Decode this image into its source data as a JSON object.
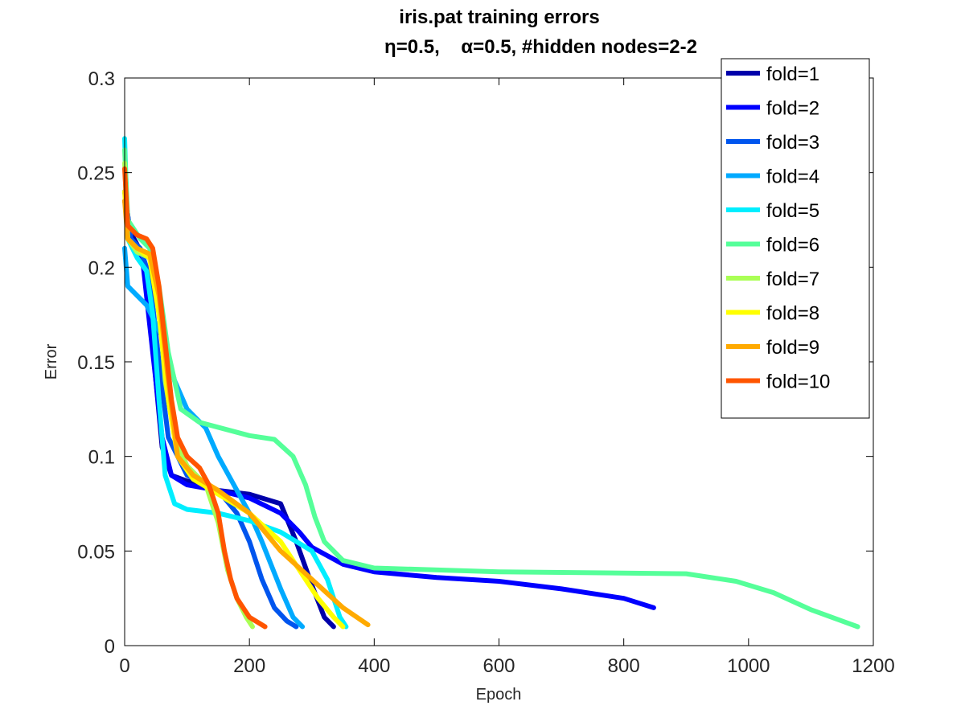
{
  "chart_data": {
    "type": "line",
    "title": "iris.pat training errors",
    "subtitle": "η=0.5,    α=0.5, #hidden nodes=2-2",
    "xlabel": "Epoch",
    "ylabel": "Error",
    "xlim": [
      0,
      1200
    ],
    "ylim": [
      0,
      0.3
    ],
    "xticks": [
      0,
      200,
      400,
      600,
      800,
      1000,
      1200
    ],
    "xtick_labels": [
      "0",
      "200",
      "400",
      "600",
      "800",
      "1000",
      "1200"
    ],
    "yticks": [
      0,
      0.05,
      0.1,
      0.15,
      0.2,
      0.25,
      0.3
    ],
    "ytick_labels": [
      "0",
      "0.05",
      "0.1",
      "0.15",
      "0.2",
      "0.25",
      "0.3"
    ],
    "grid": false,
    "legend_position": "top-right",
    "series": [
      {
        "name": "fold=1",
        "color": "#0000aa",
        "points": [
          [
            0,
            0.235
          ],
          [
            10,
            0.218
          ],
          [
            20,
            0.212
          ],
          [
            30,
            0.205
          ],
          [
            40,
            0.18
          ],
          [
            50,
            0.14
          ],
          [
            60,
            0.105
          ],
          [
            75,
            0.09
          ],
          [
            100,
            0.087
          ],
          [
            150,
            0.082
          ],
          [
            200,
            0.08
          ],
          [
            250,
            0.075
          ],
          [
            275,
            0.055
          ],
          [
            300,
            0.032
          ],
          [
            320,
            0.015
          ],
          [
            335,
            0.01
          ]
        ]
      },
      {
        "name": "fold=2",
        "color": "#0000ff",
        "points": [
          [
            0,
            0.24
          ],
          [
            10,
            0.215
          ],
          [
            20,
            0.208
          ],
          [
            30,
            0.2
          ],
          [
            40,
            0.17
          ],
          [
            50,
            0.14
          ],
          [
            60,
            0.11
          ],
          [
            75,
            0.09
          ],
          [
            100,
            0.085
          ],
          [
            150,
            0.082
          ],
          [
            200,
            0.078
          ],
          [
            250,
            0.07
          ],
          [
            280,
            0.06
          ],
          [
            300,
            0.052
          ],
          [
            350,
            0.043
          ],
          [
            400,
            0.039
          ],
          [
            500,
            0.036
          ],
          [
            600,
            0.034
          ],
          [
            700,
            0.03
          ],
          [
            800,
            0.025
          ],
          [
            848,
            0.02
          ]
        ]
      },
      {
        "name": "fold=3",
        "color": "#0055ee",
        "points": [
          [
            0,
            0.24
          ],
          [
            10,
            0.215
          ],
          [
            25,
            0.21
          ],
          [
            40,
            0.195
          ],
          [
            55,
            0.15
          ],
          [
            70,
            0.11
          ],
          [
            100,
            0.09
          ],
          [
            150,
            0.082
          ],
          [
            180,
            0.07
          ],
          [
            200,
            0.055
          ],
          [
            220,
            0.035
          ],
          [
            240,
            0.02
          ],
          [
            260,
            0.013
          ],
          [
            275,
            0.01
          ]
        ]
      },
      {
        "name": "fold=4",
        "color": "#00aaff",
        "points": [
          [
            0,
            0.21
          ],
          [
            5,
            0.19
          ],
          [
            20,
            0.185
          ],
          [
            35,
            0.18
          ],
          [
            50,
            0.17
          ],
          [
            65,
            0.16
          ],
          [
            80,
            0.14
          ],
          [
            100,
            0.125
          ],
          [
            130,
            0.115
          ],
          [
            150,
            0.1
          ],
          [
            200,
            0.07
          ],
          [
            220,
            0.055
          ],
          [
            250,
            0.03
          ],
          [
            270,
            0.015
          ],
          [
            285,
            0.01
          ]
        ]
      },
      {
        "name": "fold=5",
        "color": "#00eeff",
        "points": [
          [
            0,
            0.268
          ],
          [
            5,
            0.215
          ],
          [
            20,
            0.205
          ],
          [
            35,
            0.198
          ],
          [
            45,
            0.175
          ],
          [
            55,
            0.13
          ],
          [
            65,
            0.09
          ],
          [
            80,
            0.075
          ],
          [
            100,
            0.072
          ],
          [
            150,
            0.07
          ],
          [
            200,
            0.066
          ],
          [
            250,
            0.06
          ],
          [
            300,
            0.05
          ],
          [
            325,
            0.035
          ],
          [
            345,
            0.015
          ],
          [
            355,
            0.01
          ]
        ]
      },
      {
        "name": "fold=6",
        "color": "#55ff99",
        "points": [
          [
            0,
            0.262
          ],
          [
            5,
            0.225
          ],
          [
            25,
            0.215
          ],
          [
            40,
            0.21
          ],
          [
            55,
            0.19
          ],
          [
            70,
            0.155
          ],
          [
            90,
            0.125
          ],
          [
            120,
            0.118
          ],
          [
            200,
            0.111
          ],
          [
            240,
            0.109
          ],
          [
            270,
            0.1
          ],
          [
            290,
            0.085
          ],
          [
            305,
            0.068
          ],
          [
            320,
            0.055
          ],
          [
            350,
            0.045
          ],
          [
            400,
            0.041
          ],
          [
            600,
            0.039
          ],
          [
            900,
            0.038
          ],
          [
            980,
            0.034
          ],
          [
            1040,
            0.028
          ],
          [
            1100,
            0.019
          ],
          [
            1150,
            0.013
          ],
          [
            1175,
            0.01
          ]
        ]
      },
      {
        "name": "fold=7",
        "color": "#aaff55",
        "points": [
          [
            0,
            0.255
          ],
          [
            5,
            0.215
          ],
          [
            20,
            0.208
          ],
          [
            40,
            0.205
          ],
          [
            55,
            0.18
          ],
          [
            65,
            0.14
          ],
          [
            80,
            0.11
          ],
          [
            100,
            0.095
          ],
          [
            130,
            0.085
          ],
          [
            150,
            0.065
          ],
          [
            165,
            0.04
          ],
          [
            180,
            0.025
          ],
          [
            195,
            0.015
          ],
          [
            205,
            0.01
          ]
        ]
      },
      {
        "name": "fold=8",
        "color": "#ffff00",
        "points": [
          [
            0,
            0.24
          ],
          [
            5,
            0.215
          ],
          [
            20,
            0.21
          ],
          [
            40,
            0.205
          ],
          [
            55,
            0.175
          ],
          [
            70,
            0.13
          ],
          [
            85,
            0.1
          ],
          [
            110,
            0.088
          ],
          [
            150,
            0.08
          ],
          [
            200,
            0.07
          ],
          [
            250,
            0.055
          ],
          [
            280,
            0.04
          ],
          [
            310,
            0.025
          ],
          [
            335,
            0.015
          ],
          [
            350,
            0.01
          ]
        ]
      },
      {
        "name": "fold=9",
        "color": "#ffaa00",
        "points": [
          [
            0,
            0.235
          ],
          [
            5,
            0.215
          ],
          [
            20,
            0.21
          ],
          [
            40,
            0.207
          ],
          [
            55,
            0.185
          ],
          [
            70,
            0.14
          ],
          [
            85,
            0.1
          ],
          [
            110,
            0.09
          ],
          [
            150,
            0.082
          ],
          [
            200,
            0.07
          ],
          [
            250,
            0.05
          ],
          [
            300,
            0.035
          ],
          [
            350,
            0.02
          ],
          [
            390,
            0.011
          ]
        ]
      },
      {
        "name": "fold=10",
        "color": "#ff5500",
        "points": [
          [
            0,
            0.252
          ],
          [
            5,
            0.222
          ],
          [
            20,
            0.217
          ],
          [
            35,
            0.215
          ],
          [
            45,
            0.21
          ],
          [
            55,
            0.19
          ],
          [
            65,
            0.16
          ],
          [
            75,
            0.13
          ],
          [
            85,
            0.11
          ],
          [
            100,
            0.1
          ],
          [
            120,
            0.094
          ],
          [
            135,
            0.085
          ],
          [
            150,
            0.07
          ],
          [
            160,
            0.05
          ],
          [
            170,
            0.035
          ],
          [
            180,
            0.025
          ],
          [
            200,
            0.015
          ],
          [
            225,
            0.01
          ]
        ]
      }
    ]
  }
}
